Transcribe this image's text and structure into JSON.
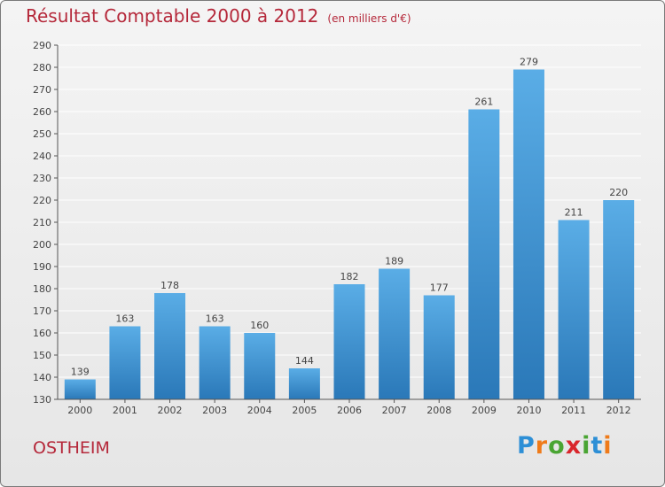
{
  "title": "Résultat Comptable 2000 à 2012",
  "unit_note": "(en milliers d'€)",
  "city": "OSTHEIM",
  "logo": {
    "text": "Proxiti",
    "colors": [
      "#2d8fd6",
      "#ef7b1a",
      "#4aa533",
      "#d9262c",
      "#4aa533",
      "#2d8fd6",
      "#ef7b1a"
    ]
  },
  "colors": {
    "accent": "#b5283a",
    "bar_top": "#5aade6",
    "bar_bottom": "#2a78b8",
    "grid": "#ffffff"
  },
  "chart_data": {
    "type": "bar",
    "title": "Résultat Comptable 2000 à 2012",
    "ylabel": "(en milliers d'€)",
    "categories": [
      "2000",
      "2001",
      "2002",
      "2003",
      "2004",
      "2005",
      "2006",
      "2007",
      "2008",
      "2009",
      "2010",
      "2011",
      "2012"
    ],
    "values": [
      139,
      163,
      178,
      163,
      160,
      144,
      182,
      189,
      177,
      261,
      279,
      211,
      220
    ],
    "ylim": [
      130,
      290
    ],
    "yticks": [
      130,
      140,
      150,
      160,
      170,
      180,
      190,
      200,
      210,
      220,
      230,
      240,
      250,
      260,
      270,
      280,
      290
    ],
    "grid": true,
    "data_labels": true
  }
}
